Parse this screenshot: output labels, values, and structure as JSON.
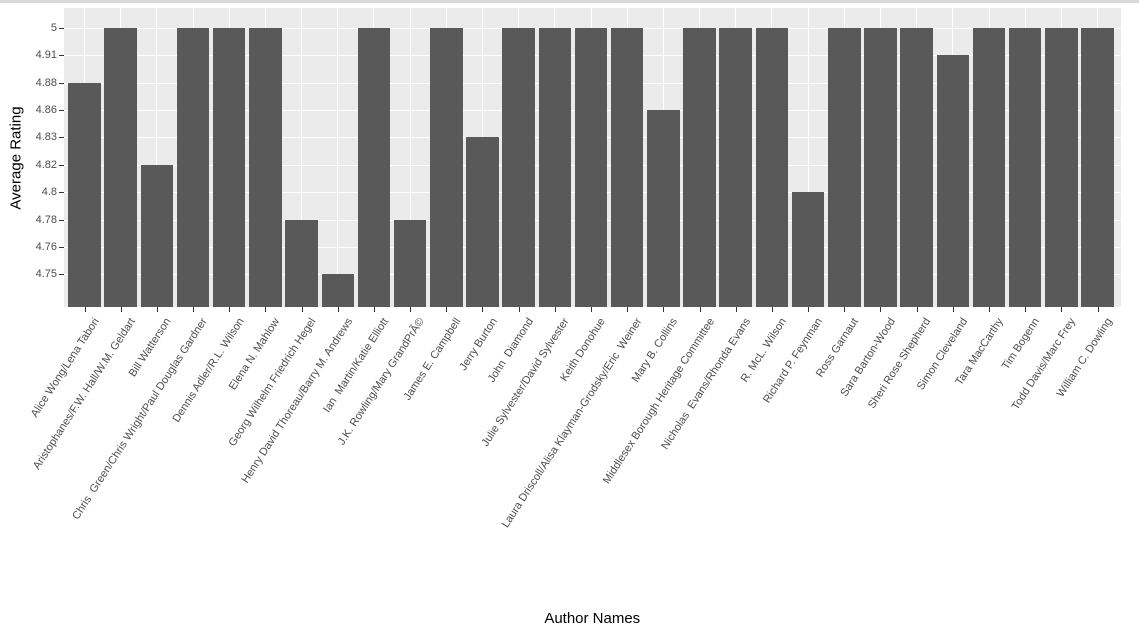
{
  "window": {
    "top_edge_color": "#d9d9d9",
    "background": "#ffffff"
  },
  "chart_data": {
    "type": "bar",
    "title": "",
    "xlabel": "Author Names",
    "ylabel": "Average Rating",
    "orientation": "vertical",
    "y_scale": "discrete",
    "y_tick_labels": [
      "4.75",
      "4.76",
      "4.78",
      "4.8",
      "4.82",
      "4.83",
      "4.86",
      "4.88",
      "4.91",
      "5"
    ],
    "grid": true,
    "legend": false,
    "categories": [
      "Alice Wong/Lena Tabori",
      "Aristophanes/F.W. Hall/W.M. Geldart",
      "Bill Watterson",
      "Chris  Green/Chris Wright/Paul Douglas Gardner",
      "Dennis Adler/R.L. Wilson",
      "Elena N. Mahlow",
      "Georg Wilhelm Friedrich Hegel",
      "Henry David Thoreau/Barry M. Andrews",
      "Ian  Martin/Katie Elliott",
      "J.K. Rowling/Mary GrandPrÃ©",
      "James E. Campbell",
      "Jerry Burton",
      "John  Diamond",
      "Julie Sylvester/David Sylvester",
      "Keith Donohue",
      "Laura Driscoll/Alisa Klayman-Grodsky/Eric  Weiner",
      "Mary B. Collins",
      "Middlesex Borough Heritage Committee",
      "Nicholas  Evans/Rhonda Evans",
      "R. McL. Wilson",
      "Richard P. Feynman",
      "Ross Garnaut",
      "Sara Barton-Wood",
      "Sheri Rose Shepherd",
      "Simon Cleveland",
      "Tara MacCarthy",
      "Tim Bogenn",
      "Todd Davis/Marc Frey",
      "William C. Dowling"
    ],
    "values": [
      4.88,
      5,
      4.82,
      5,
      5,
      5,
      4.78,
      4.75,
      5,
      4.78,
      5,
      4.83,
      5,
      5,
      5,
      5,
      4.86,
      5,
      5,
      5,
      4.8,
      5,
      5,
      5,
      4.91,
      5,
      5,
      5,
      5
    ],
    "colors": {
      "bar": "#595959",
      "panel_background": "#ebebeb",
      "gridline": "#ffffff",
      "tick_text": "#4d4d4d",
      "tick_mark": "#333333",
      "axis_title_text": "#000000"
    }
  }
}
